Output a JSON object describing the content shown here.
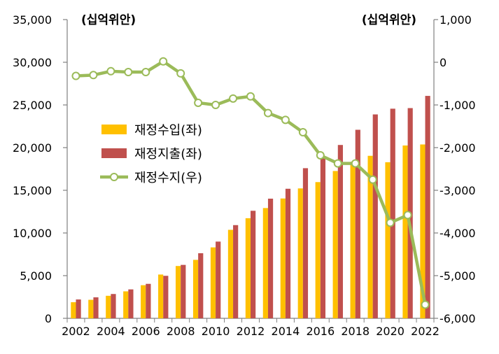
{
  "chart_data": {
    "type": "bar",
    "combo": "bar+line (dual axis)",
    "title": "",
    "left_axis": {
      "unit_label": "(십억위안)",
      "range": [
        0,
        35000
      ],
      "ticks": [
        "0",
        "5,000",
        "10,000",
        "15,000",
        "20,000",
        "25,000",
        "30,000",
        "35,000"
      ]
    },
    "right_axis": {
      "unit_label": "(십억위안)",
      "range": [
        -6000,
        1000
      ],
      "ticks": [
        "-6,000",
        "-5,000",
        "-4,000",
        "-3,000",
        "-2,000",
        "-1,000",
        "0",
        "1,000"
      ]
    },
    "x": [
      2002,
      2003,
      2004,
      2005,
      2006,
      2007,
      2008,
      2009,
      2010,
      2011,
      2012,
      2013,
      2014,
      2015,
      2016,
      2017,
      2018,
      2019,
      2020,
      2021,
      2022
    ],
    "x_tick_labels": [
      "2002",
      "2004",
      "2006",
      "2008",
      "2010",
      "2012",
      "2014",
      "2016",
      "2018",
      "2020",
      "2022"
    ],
    "grid": false,
    "legend_position": "left-middle",
    "series": [
      {
        "name": "재정수입(좌)",
        "type": "bar",
        "axis": "left",
        "color": "#FFC000",
        "values": [
          1890,
          2170,
          2640,
          3160,
          3880,
          5130,
          6130,
          6850,
          8310,
          10370,
          11730,
          12920,
          14040,
          15220,
          15960,
          17260,
          18340,
          19040,
          18290,
          20250,
          20370
        ]
      },
      {
        "name": "재정지출(좌)",
        "type": "bar",
        "axis": "left",
        "color": "#C0504D",
        "values": [
          2210,
          2460,
          2850,
          3390,
          4040,
          4980,
          6260,
          7630,
          8990,
          10920,
          12600,
          14020,
          15180,
          17590,
          18780,
          20310,
          22090,
          23890,
          24560,
          24630,
          26060
        ]
      },
      {
        "name": "재정수지(우)",
        "type": "line",
        "axis": "right",
        "color": "#9BBB59",
        "values": [
          -320,
          -300,
          -210,
          -230,
          -230,
          20,
          -260,
          -950,
          -1000,
          -850,
          -800,
          -1190,
          -1350,
          -1640,
          -2180,
          -2370,
          -2370,
          -2750,
          -3760,
          -3580,
          -5680
        ]
      }
    ]
  }
}
